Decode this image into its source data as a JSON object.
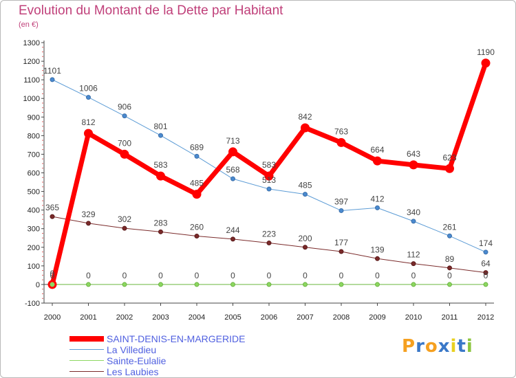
{
  "title": "Evolution du Montant de la Dette par Habitant",
  "subtitle": "(en €)",
  "logo": {
    "text": "Proxiti",
    "colors": [
      "#f5a020",
      "#3a78c8",
      "#f5a020",
      "#3a78c8",
      "#e8d020",
      "#3a78c8",
      "#8cc63f"
    ]
  },
  "chart_data": {
    "type": "line",
    "x": [
      "2000",
      "2001",
      "2002",
      "2003",
      "2004",
      "2005",
      "2006",
      "2007",
      "2008",
      "2009",
      "2010",
      "2011",
      "2012"
    ],
    "ylim": [
      -100,
      1300
    ],
    "yticks": [
      -100,
      0,
      100,
      200,
      300,
      400,
      500,
      600,
      700,
      800,
      900,
      1000,
      1100,
      1200,
      1300
    ],
    "grid": false,
    "legend_position": "bottom-left",
    "series": [
      {
        "name": "SAINT-DENIS-EN-MARGERIDE",
        "color": "#ff0000",
        "values": [
          0,
          812,
          700,
          583,
          485,
          713,
          583,
          842,
          763,
          664,
          643,
          623,
          1190
        ]
      },
      {
        "name": "La Villedieu",
        "color": "#5b9bd5",
        "values": [
          1101,
          1006,
          906,
          801,
          689,
          568,
          513,
          485,
          397,
          412,
          340,
          261,
          174
        ]
      },
      {
        "name": "Sainte-Eulalie",
        "color": "#8cd860",
        "values": [
          0,
          0,
          0,
          0,
          0,
          0,
          0,
          0,
          0,
          0,
          0,
          0,
          0
        ]
      },
      {
        "name": "Les Laubies",
        "color": "#7a2a2a",
        "values": [
          365,
          329,
          302,
          283,
          260,
          244,
          223,
          200,
          177,
          139,
          112,
          89,
          64
        ]
      }
    ]
  }
}
